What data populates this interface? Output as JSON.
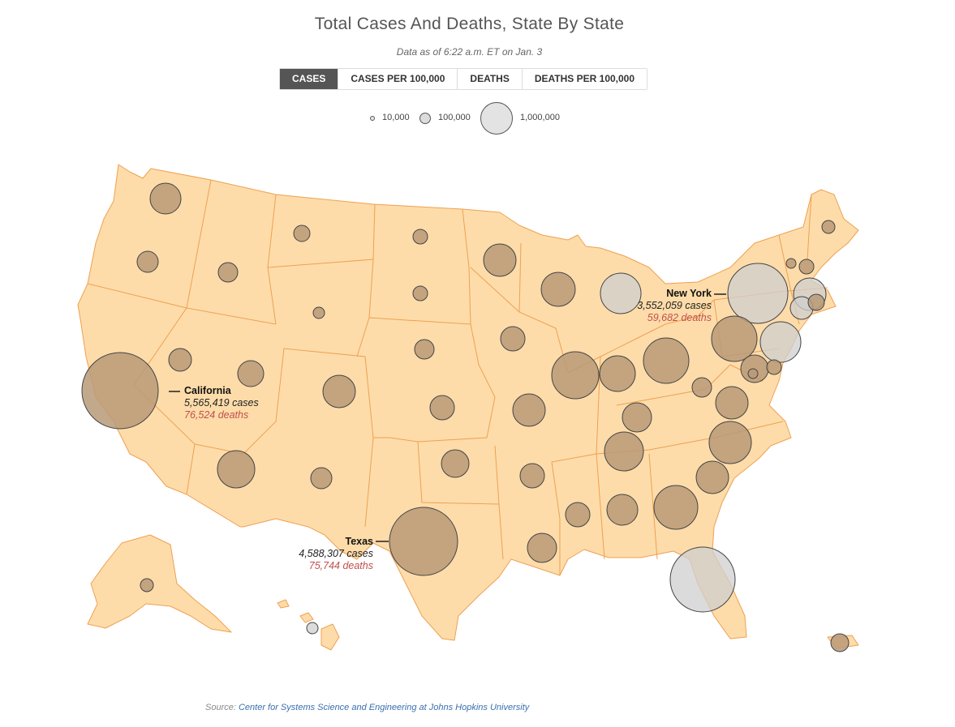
{
  "header": {
    "title": "Total Cases And Deaths, State By State",
    "subtitle": "Data as of 6:22 a.m. ET on Jan. 3"
  },
  "tabs": [
    {
      "label": "CASES",
      "active": true
    },
    {
      "label": "CASES PER 100,000",
      "active": false
    },
    {
      "label": "DEATHS",
      "active": false
    },
    {
      "label": "DEATHS PER 100,000",
      "active": false
    }
  ],
  "legend": {
    "items": [
      {
        "label": "10,000",
        "value": 10000
      },
      {
        "label": "100,000",
        "value": 100000
      },
      {
        "label": "1,000,000",
        "value": 1000000
      }
    ]
  },
  "colors": {
    "land": "#fddcaa",
    "border": "#f0a050",
    "bubble": "#b89a78",
    "bubble_outline": "#444444",
    "water_bubble": "#cfcfcf",
    "death_text": "#c0504d",
    "active_tab": "#555555"
  },
  "callouts": {
    "california": {
      "name": "California",
      "cases": "5,565,419 cases",
      "deaths": "76,524 deaths"
    },
    "texas": {
      "name": "Texas",
      "cases": "4,588,307 cases",
      "deaths": "75,744 deaths"
    },
    "new_york": {
      "name": "New York",
      "cases": "3,552,059 cases",
      "deaths": "59,682 deaths"
    }
  },
  "source": {
    "prefix": "Source: ",
    "link_text": "Center for Systems Science and Engineering at Johns Hopkins University"
  }
}
